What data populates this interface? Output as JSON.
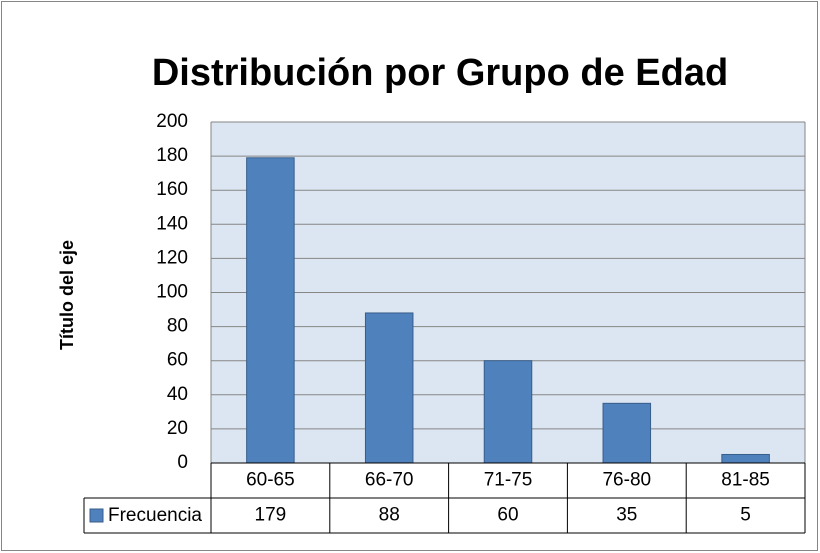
{
  "chart_data": {
    "type": "bar",
    "title": "Distribución por Grupo de Edad",
    "y_label": "Título del eje",
    "categories": [
      "60-65",
      "66-70",
      "71-75",
      "76-80",
      "81-85"
    ],
    "series": [
      {
        "name": "Frecuencia",
        "color": "#4f81bd",
        "values": [
          179,
          88,
          60,
          35,
          5
        ]
      }
    ],
    "ylim": [
      0,
      200
    ],
    "yticks": [
      0,
      20,
      40,
      60,
      80,
      100,
      120,
      140,
      160,
      180,
      200
    ],
    "grid": true
  }
}
